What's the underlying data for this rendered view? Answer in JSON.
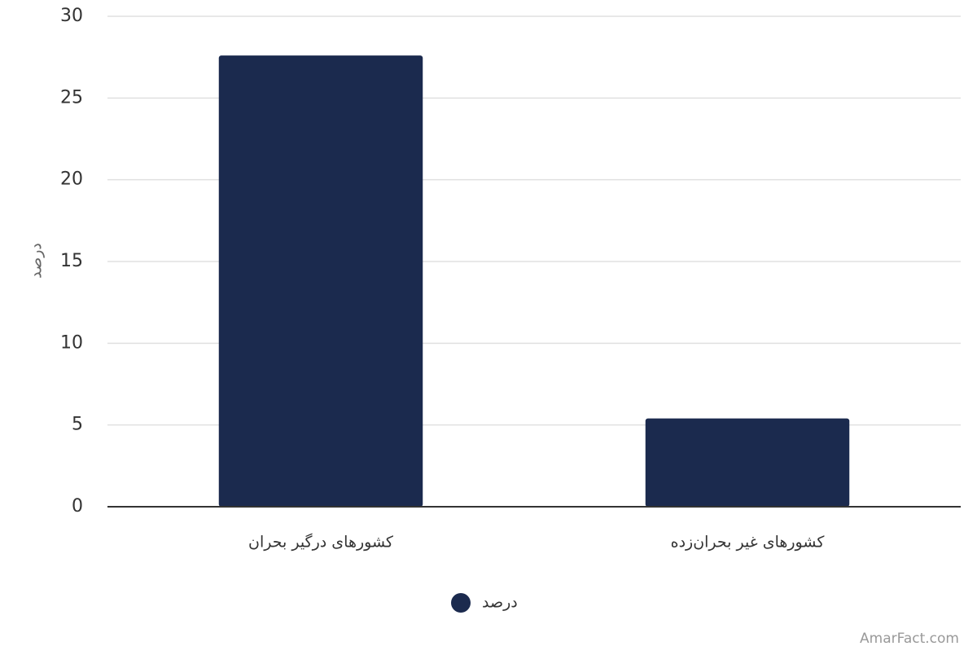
{
  "chart_data": {
    "type": "bar",
    "y_label": "درصد",
    "categories": [
      "کشورهای درگیر بحران",
      "کشورهای غیر بحران‌زده"
    ],
    "series": [
      {
        "name": "درصد",
        "color": "#1b2a4e",
        "values": [
          27.6,
          5.4
        ]
      }
    ],
    "ylim": [
      0,
      30
    ],
    "yticks": [
      0,
      5,
      10,
      15,
      20,
      25,
      30
    ],
    "grid": true,
    "legend": "bottom",
    "watermark": "AmarFact.com"
  }
}
